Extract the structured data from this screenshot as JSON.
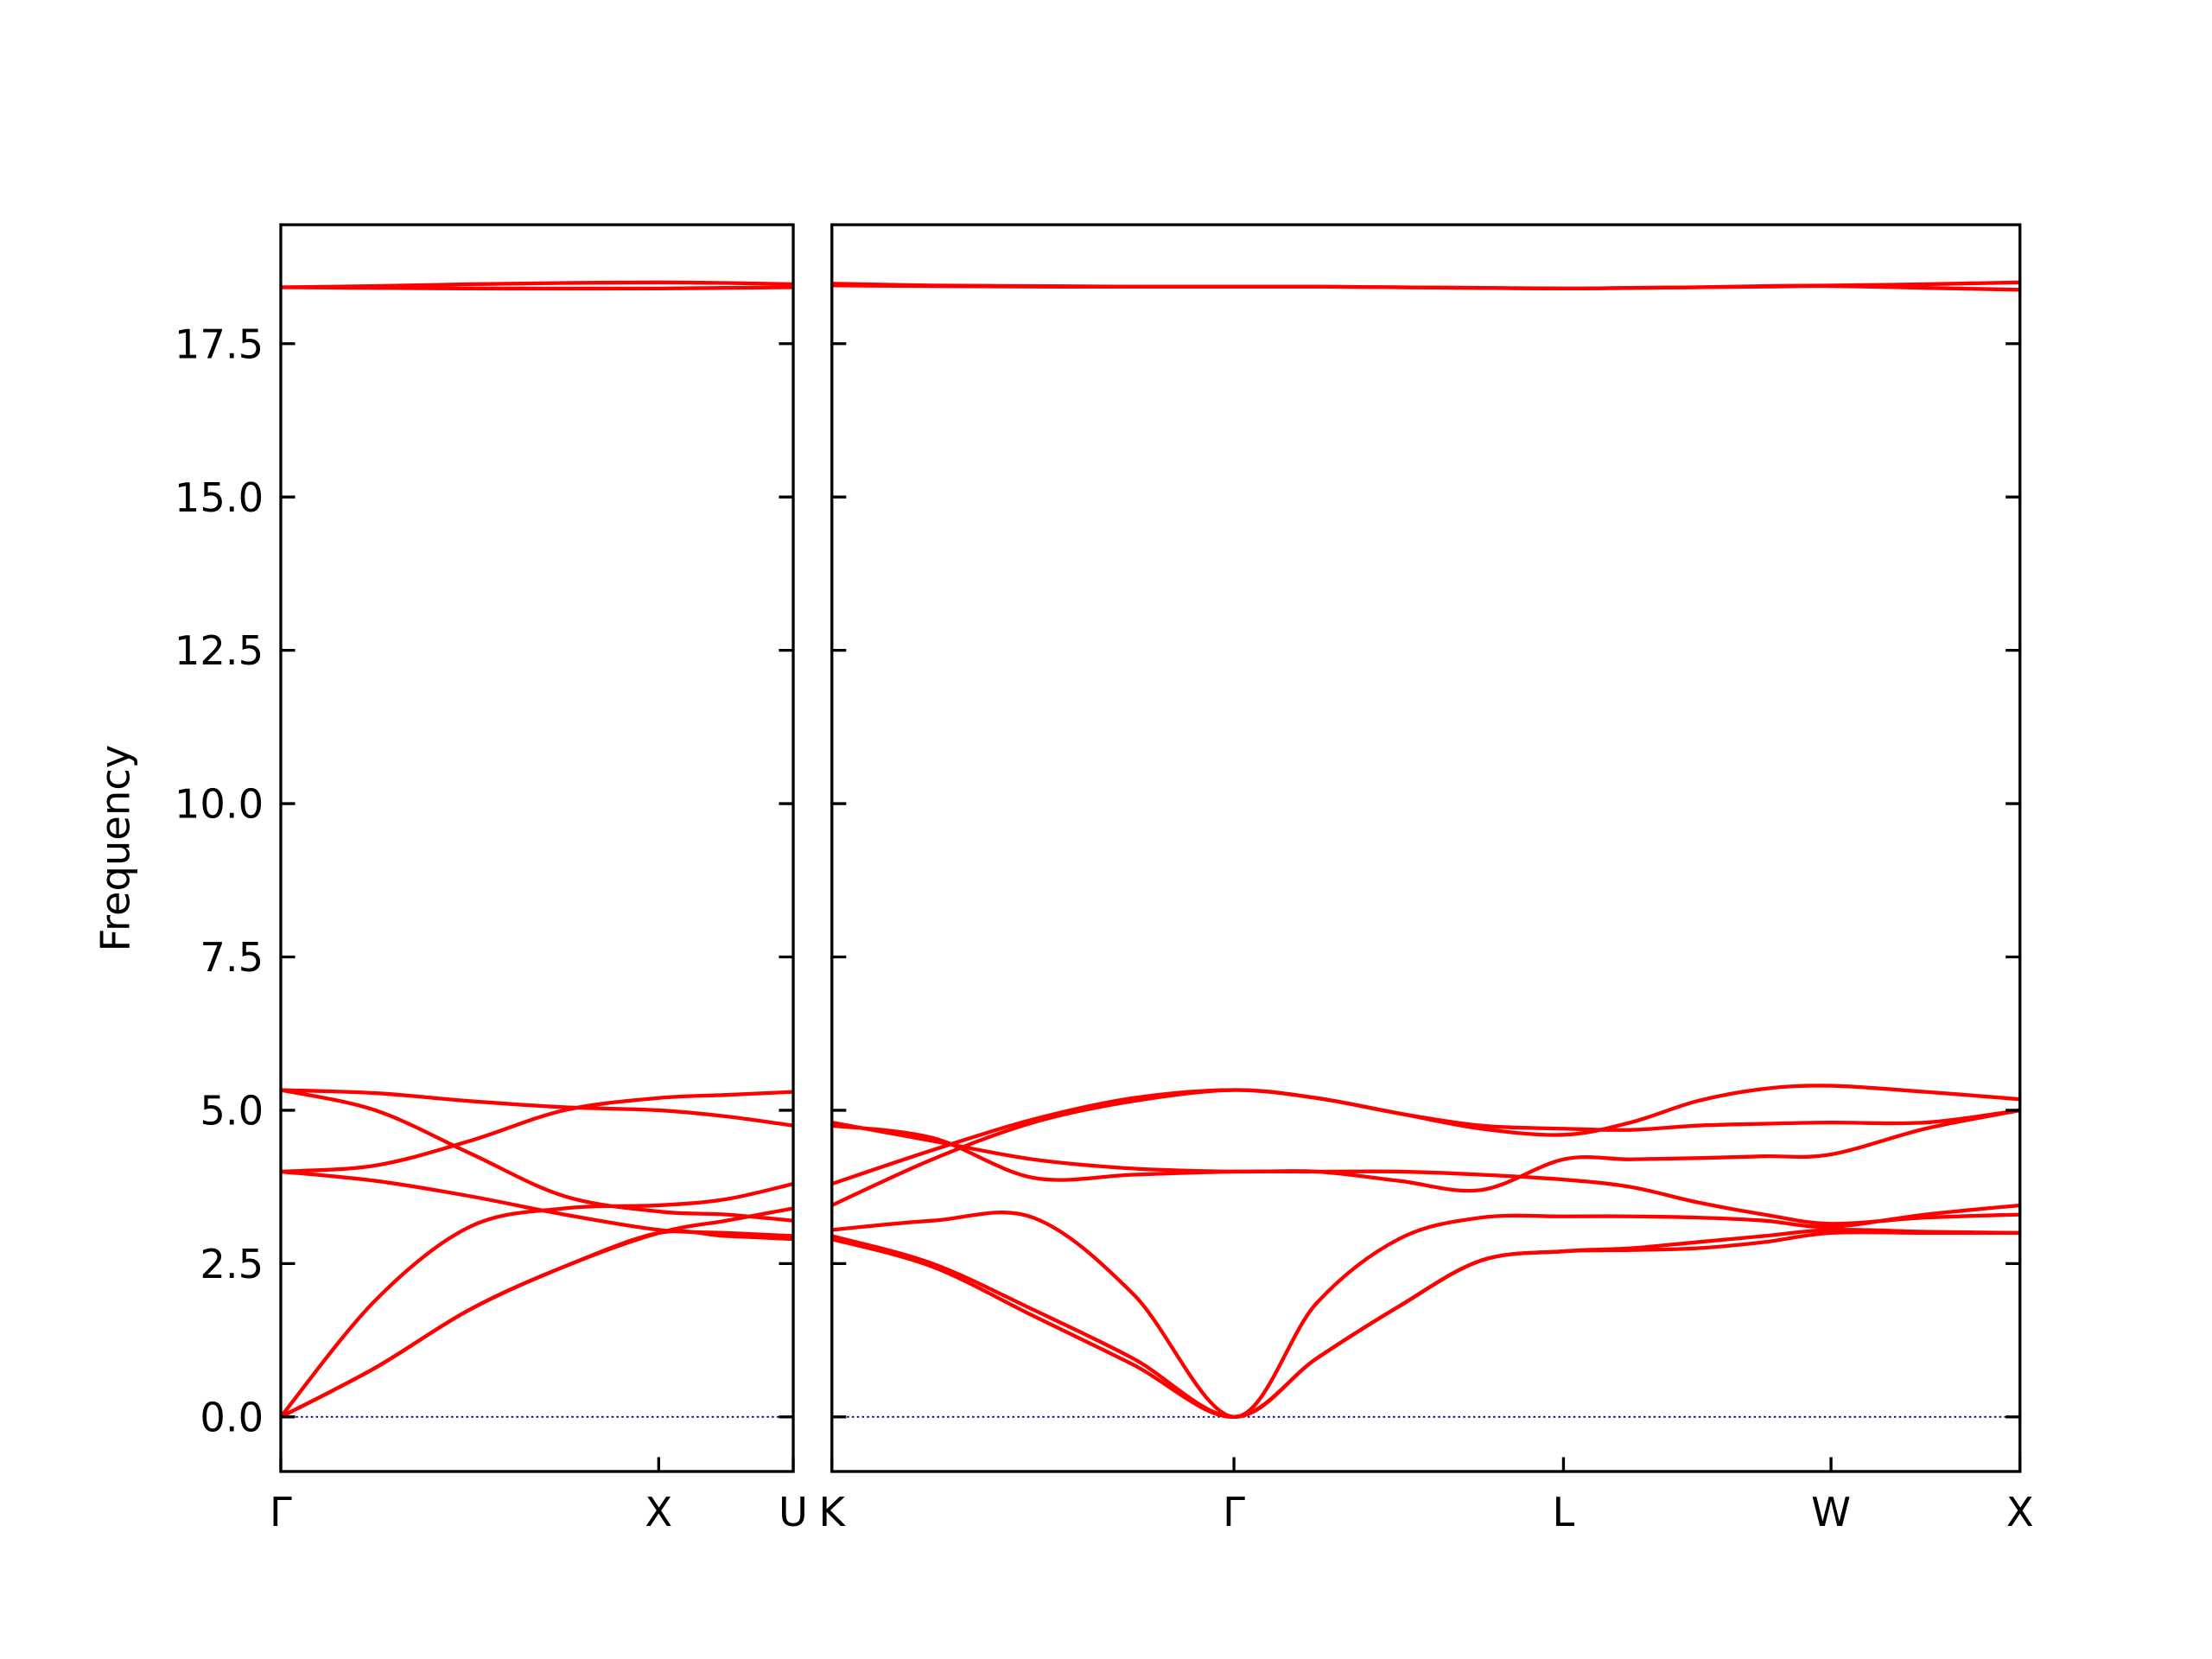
{
  "chart_data": [
    {
      "type": "line",
      "ylabel": "Frequency",
      "color": "#ff0000",
      "zero_line": true,
      "zero_line_color": "#00008b",
      "x": [
        0,
        0.25,
        0.5,
        0.75,
        1,
        1.178,
        1.356
      ],
      "xlim": [
        0,
        1.356
      ],
      "xticks": [
        {
          "value": 0,
          "label": "Γ"
        },
        {
          "value": 1,
          "label": "X"
        },
        {
          "value": 1.356,
          "label": "U"
        }
      ],
      "ylim": [
        -0.89,
        19.44
      ],
      "yticks": [
        {
          "value": 0,
          "label": "0.0"
        },
        2.5,
        {
          "value": 5,
          "label": "5.0"
        },
        7.5,
        {
          "value": 10,
          "label": "10.0"
        },
        12.5,
        {
          "value": 15,
          "label": "15.0"
        },
        17.5
      ],
      "series": [
        {
          "values": [
            0,
            0.8,
            1.75,
            2.45,
            3.0,
            2.95,
            2.9
          ]
        },
        {
          "values": [
            0,
            0.8,
            1.75,
            2.45,
            3.0,
            3.2,
            3.4
          ]
        },
        {
          "values": [
            0,
            1.9,
            3.1,
            3.4,
            3.45,
            3.55,
            3.8
          ]
        },
        {
          "values": [
            4.0,
            4.1,
            4.5,
            5.0,
            5.2,
            5.25,
            5.3
          ]
        },
        {
          "values": [
            4.0,
            3.85,
            3.6,
            3.3,
            3.05,
            3.0,
            2.95
          ]
        },
        {
          "values": [
            5.33,
            5.0,
            4.3,
            3.6,
            3.35,
            3.3,
            3.2
          ]
        },
        {
          "values": [
            5.33,
            5.28,
            5.15,
            5.05,
            5.0,
            4.9,
            4.75
          ]
        },
        {
          "values": [
            18.42,
            18.44,
            18.47,
            18.49,
            18.5,
            18.49,
            18.47
          ]
        },
        {
          "values": [
            18.42,
            18.41,
            18.4,
            18.4,
            18.4,
            18.41,
            18.42
          ]
        }
      ]
    },
    {
      "type": "line",
      "color": "#ff0000",
      "zero_line": true,
      "zero_line_color": "#00008b",
      "x": [
        0,
        0.266,
        0.532,
        0.798,
        1.064,
        1.282,
        1.5,
        1.718,
        1.936,
        2.113,
        2.29,
        2.467,
        2.644,
        2.894,
        3.144
      ],
      "xlim": [
        0,
        3.144
      ],
      "xticks": [
        {
          "value": 0,
          "label": "K"
        },
        {
          "value": 1.064,
          "label": "Γ"
        },
        {
          "value": 1.936,
          "label": "L"
        },
        {
          "value": 2.644,
          "label": "W"
        },
        {
          "value": 3.144,
          "label": "X"
        }
      ],
      "ylim": [
        -0.89,
        19.44
      ],
      "yticks": [
        0,
        2.5,
        5,
        7.5,
        10,
        12.5,
        15,
        17.5
      ],
      "series": [
        {
          "values": [
            2.95,
            2.5,
            1.75,
            0.95,
            0,
            0.95,
            1.8,
            2.55,
            2.7,
            2.72,
            2.75,
            2.85,
            3.0,
            3.0,
            3.0
          ]
        },
        {
          "values": [
            2.9,
            2.45,
            1.65,
            0.85,
            0,
            0.95,
            1.8,
            2.55,
            2.7,
            2.75,
            2.85,
            2.95,
            3.05,
            3.02,
            3.0
          ]
        },
        {
          "values": [
            3.05,
            3.2,
            3.25,
            2.0,
            0,
            1.85,
            2.9,
            3.25,
            3.27,
            3.27,
            3.25,
            3.2,
            3.1,
            3.3,
            3.45
          ]
        },
        {
          "values": [
            3.8,
            4.35,
            4.85,
            5.2,
            5.33,
            5.2,
            4.95,
            4.7,
            4.6,
            4.8,
            5.15,
            5.35,
            5.4,
            5.3,
            5.18
          ]
        },
        {
          "values": [
            3.45,
            4.2,
            4.8,
            5.15,
            5.33,
            5.2,
            4.95,
            4.75,
            4.7,
            4.68,
            4.75,
            4.78,
            4.8,
            4.8,
            5.0
          ]
        },
        {
          "values": [
            4.8,
            4.5,
            4.2,
            4.05,
            4.0,
            4.0,
            3.85,
            3.7,
            4.2,
            4.2,
            4.22,
            4.25,
            4.28,
            4.7,
            5.0
          ]
        },
        {
          "values": [
            4.75,
            4.55,
            3.9,
            3.95,
            4.0,
            4.0,
            4.0,
            3.95,
            3.87,
            3.75,
            3.5,
            3.3,
            3.15,
            3.25,
            3.3
          ]
        },
        {
          "values": [
            18.48,
            18.45,
            18.44,
            18.43,
            18.43,
            18.43,
            18.42,
            18.41,
            18.4,
            18.41,
            18.42,
            18.44,
            18.45,
            18.47,
            18.5
          ]
        },
        {
          "values": [
            18.45,
            18.44,
            18.43,
            18.43,
            18.43,
            18.43,
            18.42,
            18.41,
            18.4,
            18.41,
            18.42,
            18.43,
            18.44,
            18.41,
            18.38
          ]
        }
      ]
    }
  ]
}
